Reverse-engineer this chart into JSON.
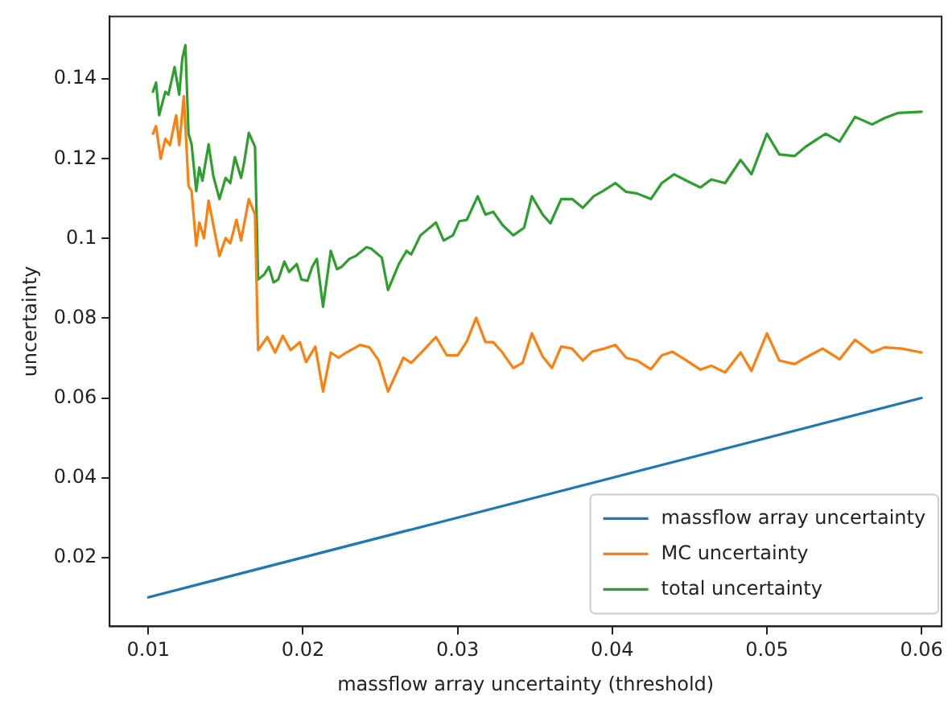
{
  "chart_data": {
    "type": "line",
    "xlabel": "massflow array uncertainty (threshold)",
    "ylabel": "uncertainty",
    "xlim": [
      0.0075,
      0.0613
    ],
    "xticks": [
      0.01,
      0.02,
      0.03,
      0.04,
      0.05,
      0.06
    ],
    "ylim": [
      0.0027,
      0.1557
    ],
    "yticks": [
      0.02,
      0.04,
      0.06,
      0.08,
      0.1,
      0.12,
      0.14
    ],
    "grid": false,
    "legend": "bottom right",
    "marker": "none",
    "line_style": "solid",
    "series": [
      {
        "name": "massflow array uncertainty",
        "color": "#1f77b4",
        "x": [
          0.01,
          0.06
        ],
        "values": [
          0.01,
          0.06
        ]
      },
      {
        "name": "MC uncertainty",
        "color": "#ff7f0e",
        "x": [
          0.0103,
          0.0105,
          0.0108,
          0.0111,
          0.0114,
          0.0118,
          0.012,
          0.0123,
          0.0126,
          0.0128,
          0.0131,
          0.0133,
          0.0136,
          0.0139,
          0.0143,
          0.0146,
          0.015,
          0.0153,
          0.0157,
          0.016,
          0.0165,
          0.0169,
          0.0171,
          0.0177,
          0.0182,
          0.0187,
          0.0192,
          0.0198,
          0.0202,
          0.0208,
          0.0213,
          0.0218,
          0.0223,
          0.0228,
          0.0237,
          0.0243,
          0.0249,
          0.0255,
          0.0265,
          0.027,
          0.0278,
          0.0286,
          0.0293,
          0.03,
          0.0306,
          0.0312,
          0.0318,
          0.0323,
          0.0329,
          0.0336,
          0.0342,
          0.0348,
          0.0355,
          0.0361,
          0.0367,
          0.0374,
          0.0381,
          0.0387,
          0.0395,
          0.0402,
          0.0409,
          0.0416,
          0.0425,
          0.0432,
          0.0439,
          0.0448,
          0.0457,
          0.0464,
          0.0473,
          0.0483,
          0.049,
          0.05,
          0.0508,
          0.0518,
          0.0525,
          0.0536,
          0.0547,
          0.0557,
          0.0568,
          0.0576,
          0.0587,
          0.06
        ],
        "values": [
          0.1263,
          0.1282,
          0.12,
          0.125,
          0.1234,
          0.1309,
          0.1234,
          0.1357,
          0.1132,
          0.1119,
          0.0982,
          0.104,
          0.1001,
          0.1095,
          0.1015,
          0.0956,
          0.1001,
          0.0988,
          0.1047,
          0.0995,
          0.1099,
          0.106,
          0.072,
          0.0753,
          0.0714,
          0.0756,
          0.072,
          0.074,
          0.069,
          0.0729,
          0.0616,
          0.0714,
          0.0701,
          0.0714,
          0.0733,
          0.0727,
          0.0694,
          0.0616,
          0.0701,
          0.0688,
          0.072,
          0.0753,
          0.0707,
          0.0707,
          0.0742,
          0.0801,
          0.074,
          0.074,
          0.0714,
          0.0675,
          0.0688,
          0.0762,
          0.0704,
          0.0675,
          0.0729,
          0.0724,
          0.0694,
          0.0716,
          0.0724,
          0.0733,
          0.0701,
          0.0694,
          0.0672,
          0.0707,
          0.0716,
          0.0694,
          0.0671,
          0.0681,
          0.0664,
          0.0714,
          0.0668,
          0.0762,
          0.0694,
          0.0685,
          0.0701,
          0.0724,
          0.0697,
          0.0746,
          0.0714,
          0.0727,
          0.0724,
          0.0714
        ]
      },
      {
        "name": "total uncertainty",
        "color": "#2ca02c",
        "x": [
          0.0103,
          0.0105,
          0.0107,
          0.0111,
          0.0113,
          0.0117,
          0.012,
          0.0122,
          0.0124,
          0.0126,
          0.0128,
          0.0131,
          0.0133,
          0.0135,
          0.0139,
          0.0142,
          0.0146,
          0.015,
          0.0153,
          0.0156,
          0.016,
          0.0162,
          0.0165,
          0.0169,
          0.0171,
          0.0175,
          0.0178,
          0.0181,
          0.0184,
          0.0188,
          0.0191,
          0.0196,
          0.0199,
          0.0203,
          0.0206,
          0.0209,
          0.0213,
          0.0218,
          0.0222,
          0.0225,
          0.023,
          0.0234,
          0.0241,
          0.0244,
          0.0251,
          0.0255,
          0.0262,
          0.0267,
          0.027,
          0.0276,
          0.0286,
          0.0291,
          0.0297,
          0.0301,
          0.0306,
          0.0313,
          0.0318,
          0.0323,
          0.0329,
          0.0336,
          0.0343,
          0.0348,
          0.0355,
          0.036,
          0.0367,
          0.0374,
          0.0381,
          0.0388,
          0.0394,
          0.0402,
          0.0409,
          0.0416,
          0.0425,
          0.0432,
          0.044,
          0.0448,
          0.0457,
          0.0464,
          0.0473,
          0.0483,
          0.049,
          0.05,
          0.0508,
          0.0518,
          0.0525,
          0.0538,
          0.0547,
          0.0557,
          0.0568,
          0.0576,
          0.0585,
          0.06
        ],
        "values": [
          0.1368,
          0.1391,
          0.1309,
          0.1368,
          0.1361,
          0.143,
          0.1361,
          0.1452,
          0.1485,
          0.1263,
          0.1236,
          0.1119,
          0.1178,
          0.1145,
          0.1236,
          0.1158,
          0.1099,
          0.1152,
          0.1139,
          0.1204,
          0.1152,
          0.1191,
          0.1265,
          0.123,
          0.0897,
          0.091,
          0.0929,
          0.089,
          0.0897,
          0.0942,
          0.0916,
          0.0936,
          0.0897,
          0.0894,
          0.0929,
          0.0949,
          0.0829,
          0.0969,
          0.0923,
          0.0929,
          0.0949,
          0.0956,
          0.0978,
          0.0975,
          0.0952,
          0.0871,
          0.0936,
          0.0969,
          0.096,
          0.1008,
          0.104,
          0.0995,
          0.1008,
          0.1043,
          0.1047,
          0.1106,
          0.106,
          0.1067,
          0.1034,
          0.1008,
          0.1027,
          0.1106,
          0.106,
          0.1038,
          0.1099,
          0.1099,
          0.1077,
          0.1106,
          0.1119,
          0.1139,
          0.1117,
          0.1113,
          0.1099,
          0.1139,
          0.1161,
          0.1145,
          0.1128,
          0.1148,
          0.1139,
          0.1197,
          0.1161,
          0.1263,
          0.1211,
          0.1207,
          0.123,
          0.1263,
          0.1243,
          0.1305,
          0.1286,
          0.1302,
          0.1315,
          0.1318
        ]
      }
    ]
  }
}
